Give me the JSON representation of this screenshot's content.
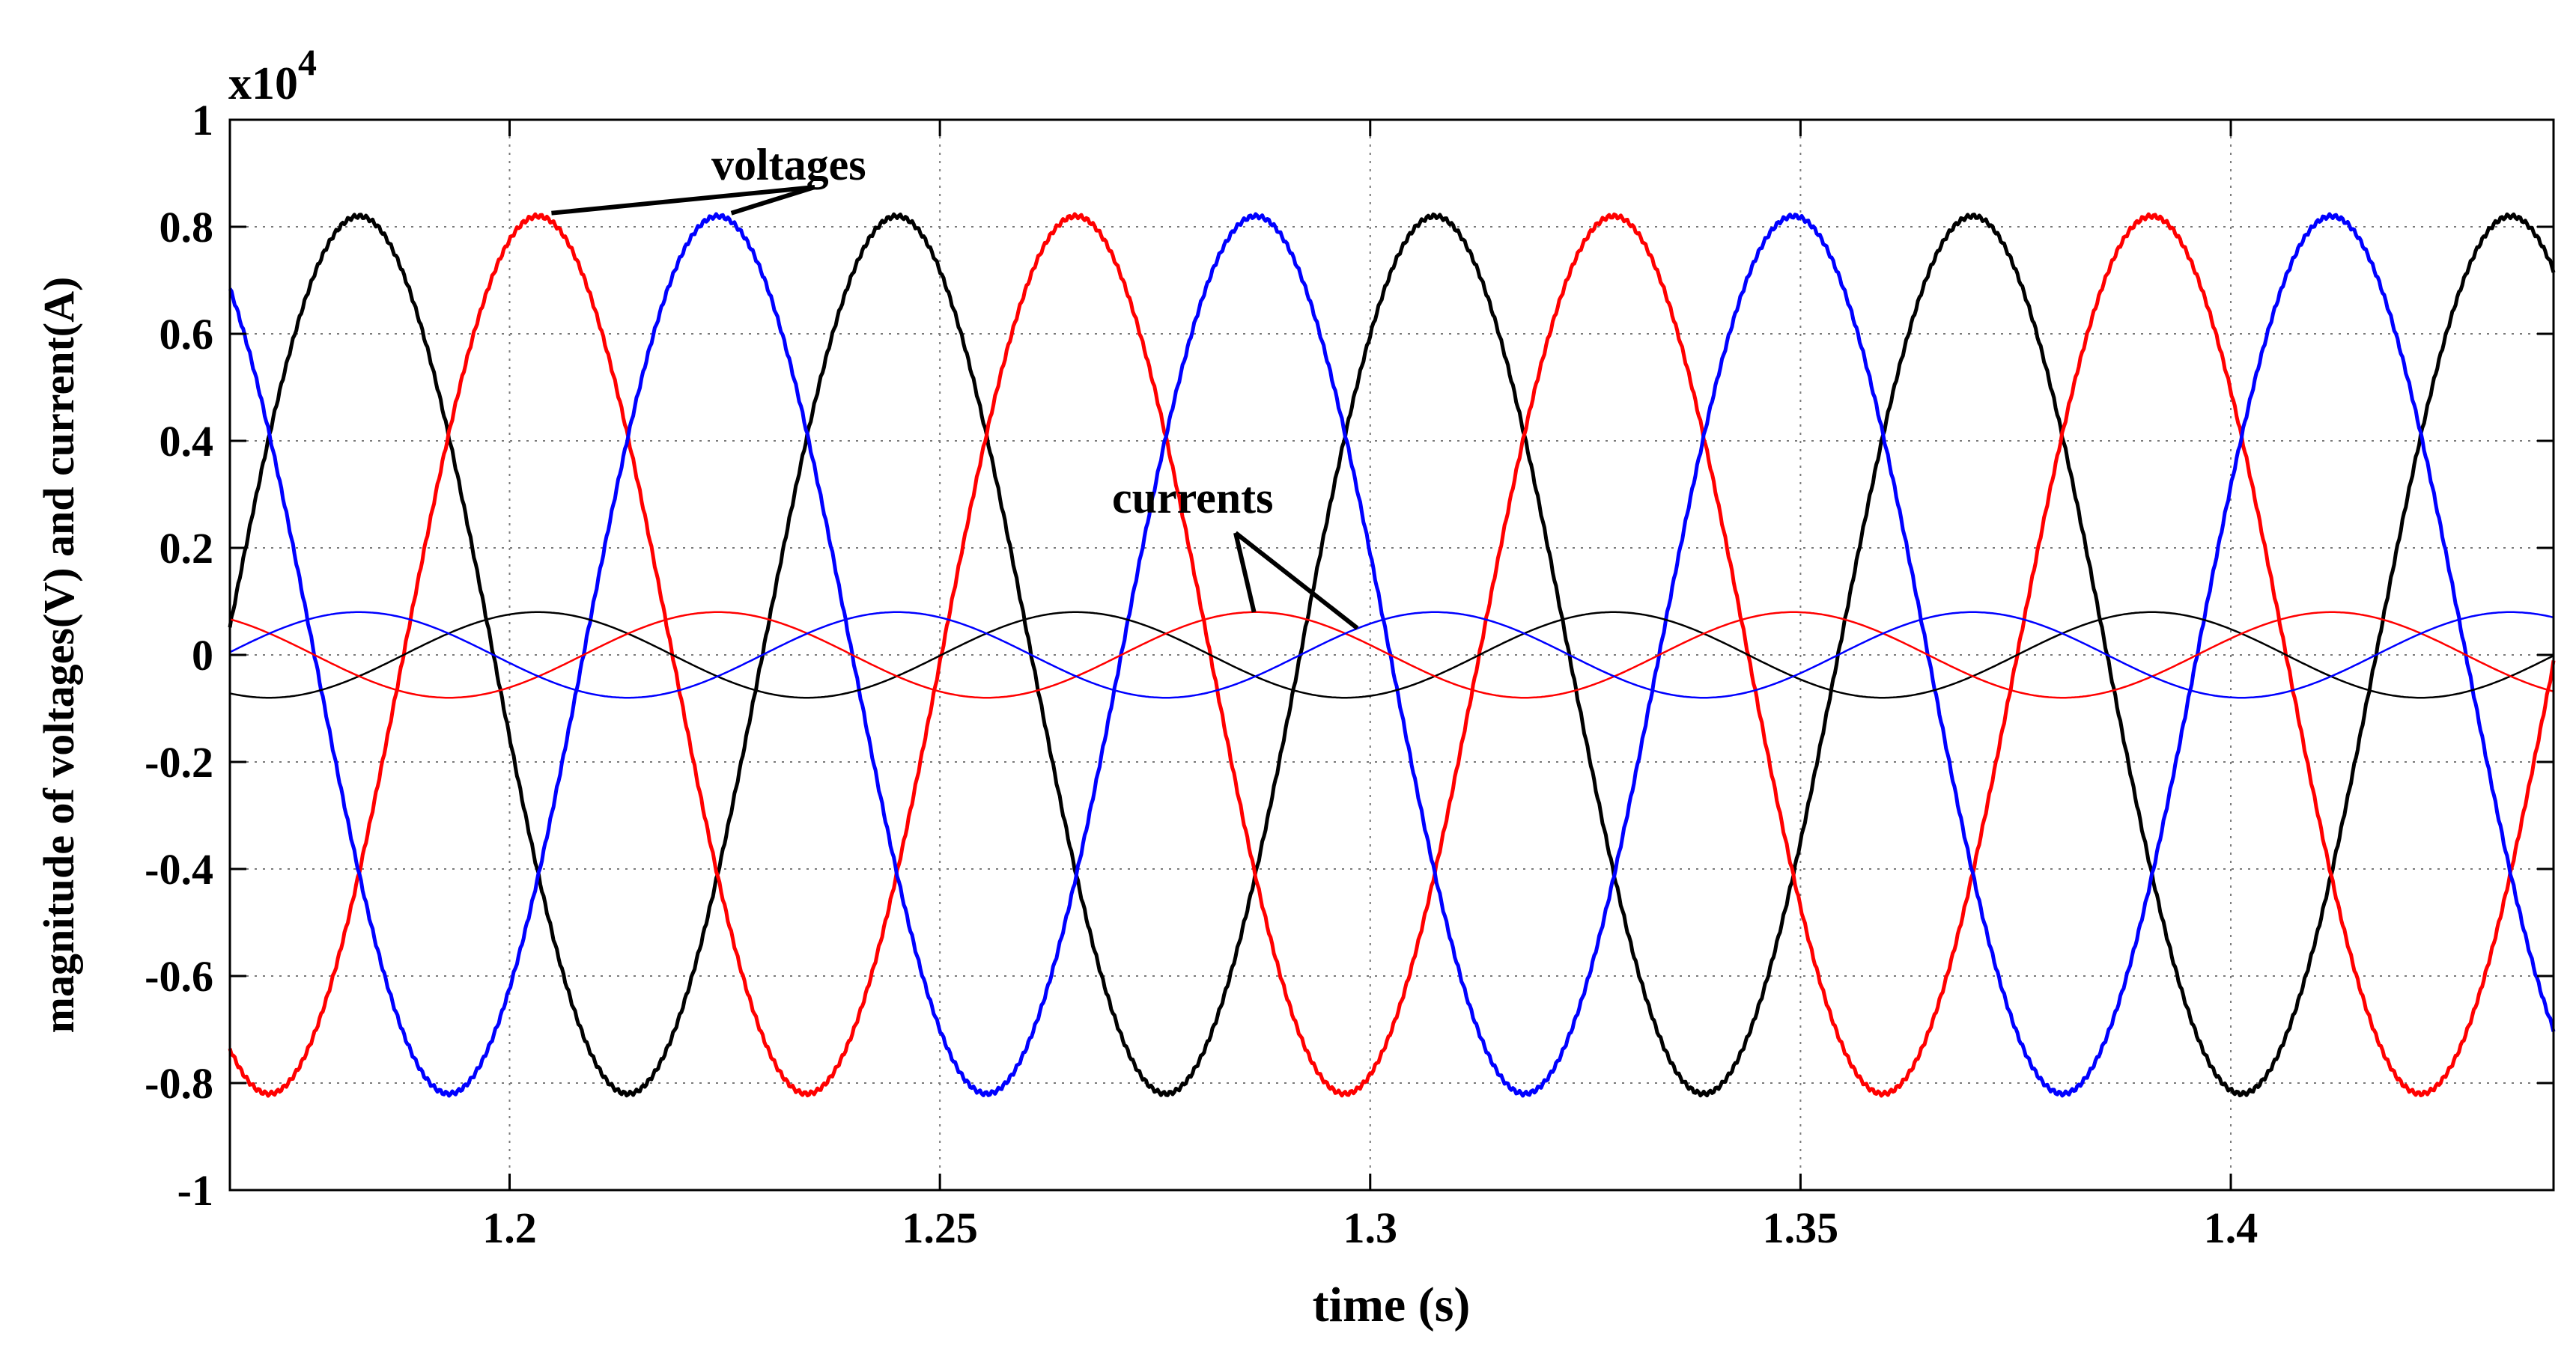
{
  "chart_data": {
    "type": "line",
    "title": "",
    "xlabel": "time (s)",
    "ylabel": "magnitude of voltages(V) and current(A)",
    "exponent_label": "x10",
    "exponent_power": "4",
    "xlim": [
      1.1675,
      1.4375
    ],
    "ylim": [
      -1,
      1
    ],
    "xticks": [
      1.2,
      1.25,
      1.3,
      1.35,
      1.4
    ],
    "xtick_labels": [
      "1.2",
      "1.25",
      "1.3",
      "1.35",
      "1.4"
    ],
    "yticks": [
      -1,
      -0.8,
      -0.6,
      -0.4,
      -0.2,
      0,
      0.2,
      0.4,
      0.6,
      0.8,
      1
    ],
    "ytick_labels": [
      "-1",
      "-0.8",
      "-0.6",
      "-0.4",
      "-0.2",
      "0",
      "0.2",
      "0.4",
      "0.6",
      "0.8",
      "1"
    ],
    "grid": true,
    "frequency_hz": 16,
    "series": [
      {
        "name": "voltage-black",
        "kind": "voltage",
        "color": "#000000",
        "amplitude": 0.82,
        "peak_time": 1.1825
      },
      {
        "name": "voltage-red",
        "kind": "voltage",
        "color": "#ff0000",
        "amplitude": 0.82,
        "peak_time": 1.2033
      },
      {
        "name": "voltage-blue",
        "kind": "voltage",
        "color": "#0000ff",
        "amplitude": 0.82,
        "peak_time": 1.2242
      },
      {
        "name": "current-black",
        "kind": "current",
        "color": "#000000",
        "amplitude": 0.08,
        "peak_time": 1.2033
      },
      {
        "name": "current-red",
        "kind": "current",
        "color": "#ff0000",
        "amplitude": 0.08,
        "peak_time": 1.2242
      },
      {
        "name": "current-blue",
        "kind": "current",
        "color": "#0000ff",
        "amplitude": 0.08,
        "peak_time": 1.245
      }
    ],
    "annotations": [
      {
        "text": "voltages",
        "targets": [
          [
            1.2033,
            0.82
          ],
          [
            1.2242,
            0.82
          ]
        ]
      },
      {
        "text": "currents",
        "targets": [
          [
            1.2865,
            0.08
          ],
          [
            1.2985,
            0.05
          ]
        ]
      }
    ]
  }
}
